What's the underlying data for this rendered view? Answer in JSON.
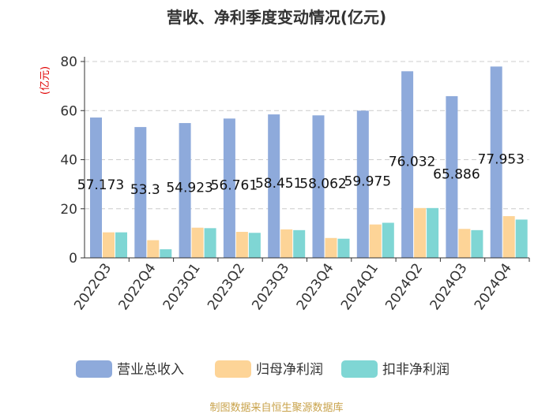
{
  "chart_data": {
    "type": "bar",
    "title": "营收、净利季度变动情况(亿元)",
    "ylabel": "(亿元)",
    "xlabel": "",
    "ylim": [
      0,
      80
    ],
    "yticks": [
      0,
      20,
      40,
      60,
      80
    ],
    "grid": "horizontal-dashed",
    "legend_position": "bottom",
    "categories": [
      "2022Q3",
      "2022Q4",
      "2023Q1",
      "2023Q2",
      "2023Q3",
      "2023Q4",
      "2024Q1",
      "2024Q2",
      "2024Q3",
      "2024Q4"
    ],
    "series": [
      {
        "name": "营业总收入",
        "color": "#8eaadb",
        "values": [
          57.173,
          53.3,
          54.923,
          56.761,
          58.451,
          58.062,
          59.975,
          76.032,
          65.886,
          77.953
        ],
        "labels": [
          "57.173",
          "53.3",
          "54.923",
          "56.761",
          "58.451",
          "58.062",
          "59.975",
          "76.032",
          "65.886",
          "77.953"
        ]
      },
      {
        "name": "归母净利润",
        "color": "#fdd497",
        "values": [
          10.4,
          7.2,
          12.3,
          10.6,
          11.6,
          8.1,
          13.6,
          20.3,
          11.8,
          17.0
        ]
      },
      {
        "name": "扣非净利润",
        "color": "#7fd6d4",
        "values": [
          10.4,
          3.5,
          12.1,
          10.2,
          11.3,
          7.8,
          14.3,
          20.3,
          11.3,
          15.6
        ]
      }
    ]
  },
  "footer": {
    "source": "制图数据来自恒生聚源数据库"
  }
}
